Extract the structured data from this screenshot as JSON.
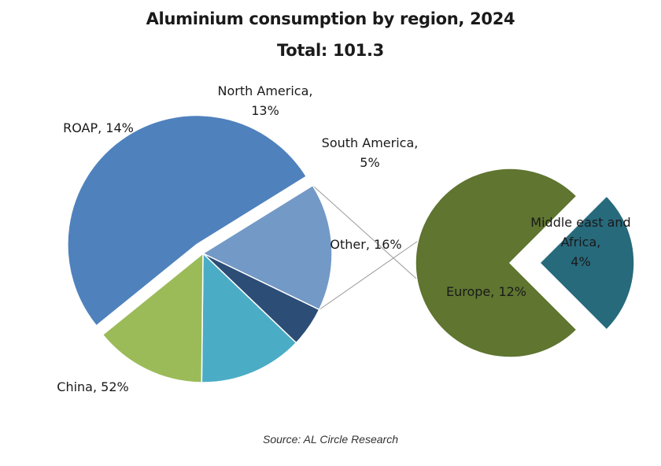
{
  "chart_data": [
    {
      "type": "pie",
      "title": "Aluminium consumption by region, 2024",
      "subtitle": "Total: 101.3",
      "slices": [
        {
          "label": "China",
          "value": 52,
          "display": "China, 52%",
          "color": "#4f81bd"
        },
        {
          "label": "Other",
          "value": 16,
          "display": "Other, 16%",
          "color": "#7399c6"
        },
        {
          "label": "South America",
          "value": 5,
          "display": [
            "South America,",
            "5%"
          ],
          "color": "#2c4d75"
        },
        {
          "label": "North America",
          "value": 13,
          "display": [
            "North America,",
            "13%"
          ],
          "color": "#4bacc6"
        },
        {
          "label": "ROAP",
          "value": 14,
          "display": "ROAP, 14%",
          "color": "#9bbb59"
        }
      ]
    },
    {
      "type": "pie",
      "title": "",
      "breakdown_of": "Other",
      "slices": [
        {
          "label": "Europe",
          "value": 12,
          "display": "Europe, 12%",
          "color": "#5f7530"
        },
        {
          "label": "Middle east and Africa",
          "value": 4,
          "display": [
            "Middle east and",
            "Africa,",
            "4%"
          ],
          "color": "#276a7c"
        }
      ]
    }
  ],
  "source": "Source: AL Circle Research"
}
